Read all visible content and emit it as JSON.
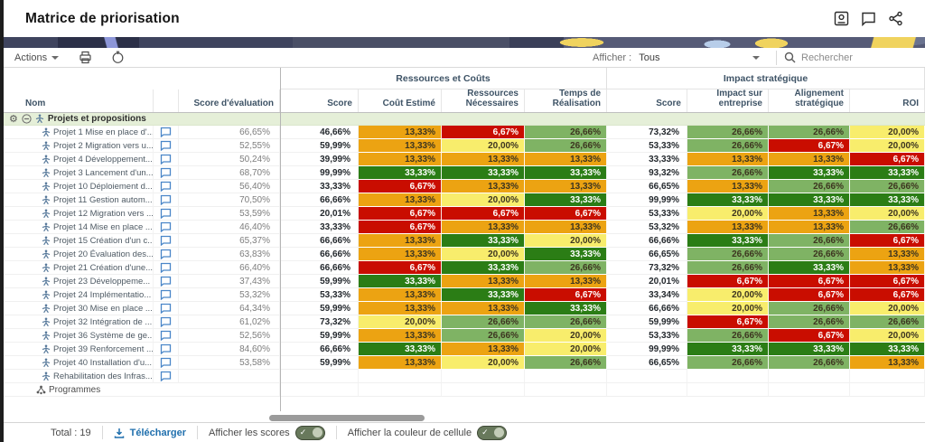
{
  "header": {
    "title": "Matrice de priorisation",
    "icons": [
      "user-card-icon",
      "comment-icon",
      "share-icon"
    ]
  },
  "toolbar": {
    "actions_label": "Actions",
    "print_icon": "printer-icon",
    "history_icon": "history-icon",
    "afficher_label": "Afficher :",
    "afficher_value": "Tous",
    "search_placeholder": "Rechercher"
  },
  "palette": {
    "green": "#2b7d15",
    "lgreen": "#7fb364",
    "yellow": "#f8ed6c",
    "orange": "#eca312",
    "red": "#c90d00",
    "dark_text": "#3d3520",
    "light_text": "#ffffff",
    "group_row_bg": "#e5efd8"
  },
  "table": {
    "group_headers": [
      {
        "label": "Ressources et Coûts"
      },
      {
        "label": "Impact stratégique"
      }
    ],
    "columns": [
      "Nom",
      "",
      "Score d'évaluation",
      "Score",
      "Coût Estimé",
      "Ressources Nécessaires",
      "Temps de Réalisation",
      "Score",
      "Impact sur entreprise",
      "Alignement stratégique",
      "ROI"
    ],
    "group_row_label": "Projets et propositions",
    "programmes_label": "Programmes",
    "rows": [
      {
        "name": "Projet 1 Mise en place d'...",
        "score_eval": "66,65%",
        "rc_score": "46,66%",
        "cout": {
          "v": "13,33%",
          "c": "orange"
        },
        "ress": {
          "v": "6,67%",
          "c": "red"
        },
        "temps": {
          "v": "26,66%",
          "c": "lgreen"
        },
        "is_score": "73,32%",
        "impact": {
          "v": "26,66%",
          "c": "lgreen"
        },
        "align": {
          "v": "26,66%",
          "c": "lgreen"
        },
        "roi": {
          "v": "20,00%",
          "c": "yellow"
        }
      },
      {
        "name": "Projet 2 Migration vers u...",
        "score_eval": "52,55%",
        "rc_score": "59,99%",
        "cout": {
          "v": "13,33%",
          "c": "orange"
        },
        "ress": {
          "v": "20,00%",
          "c": "yellow"
        },
        "temps": {
          "v": "26,66%",
          "c": "lgreen"
        },
        "is_score": "53,33%",
        "impact": {
          "v": "26,66%",
          "c": "lgreen"
        },
        "align": {
          "v": "6,67%",
          "c": "red"
        },
        "roi": {
          "v": "20,00%",
          "c": "yellow"
        }
      },
      {
        "name": "Projet 4 Développement...",
        "score_eval": "50,24%",
        "rc_score": "39,99%",
        "cout": {
          "v": "13,33%",
          "c": "orange"
        },
        "ress": {
          "v": "13,33%",
          "c": "orange"
        },
        "temps": {
          "v": "13,33%",
          "c": "orange"
        },
        "is_score": "33,33%",
        "impact": {
          "v": "13,33%",
          "c": "orange"
        },
        "align": {
          "v": "13,33%",
          "c": "orange"
        },
        "roi": {
          "v": "6,67%",
          "c": "red"
        }
      },
      {
        "name": "Projet 3 Lancement d'un...",
        "score_eval": "68,70%",
        "rc_score": "99,99%",
        "cout": {
          "v": "33,33%",
          "c": "green"
        },
        "ress": {
          "v": "33,33%",
          "c": "green"
        },
        "temps": {
          "v": "33,33%",
          "c": "green"
        },
        "is_score": "93,32%",
        "impact": {
          "v": "26,66%",
          "c": "lgreen"
        },
        "align": {
          "v": "33,33%",
          "c": "green"
        },
        "roi": {
          "v": "33,33%",
          "c": "green"
        }
      },
      {
        "name": "Projet 10 Déploiement d...",
        "score_eval": "56,40%",
        "rc_score": "33,33%",
        "cout": {
          "v": "6,67%",
          "c": "red"
        },
        "ress": {
          "v": "13,33%",
          "c": "orange"
        },
        "temps": {
          "v": "13,33%",
          "c": "orange"
        },
        "is_score": "66,65%",
        "impact": {
          "v": "13,33%",
          "c": "orange"
        },
        "align": {
          "v": "26,66%",
          "c": "lgreen"
        },
        "roi": {
          "v": "26,66%",
          "c": "lgreen"
        }
      },
      {
        "name": "Projet 11 Gestion autom...",
        "score_eval": "70,50%",
        "rc_score": "66,66%",
        "cout": {
          "v": "13,33%",
          "c": "orange"
        },
        "ress": {
          "v": "20,00%",
          "c": "yellow"
        },
        "temps": {
          "v": "33,33%",
          "c": "green"
        },
        "is_score": "99,99%",
        "impact": {
          "v": "33,33%",
          "c": "green"
        },
        "align": {
          "v": "33,33%",
          "c": "green"
        },
        "roi": {
          "v": "33,33%",
          "c": "green"
        }
      },
      {
        "name": "Projet 12 Migration vers ...",
        "score_eval": "53,59%",
        "rc_score": "20,01%",
        "cout": {
          "v": "6,67%",
          "c": "red"
        },
        "ress": {
          "v": "6,67%",
          "c": "red"
        },
        "temps": {
          "v": "6,67%",
          "c": "red"
        },
        "is_score": "53,33%",
        "impact": {
          "v": "20,00%",
          "c": "yellow"
        },
        "align": {
          "v": "13,33%",
          "c": "orange"
        },
        "roi": {
          "v": "20,00%",
          "c": "yellow"
        }
      },
      {
        "name": "Projet 14 Mise en place ...",
        "score_eval": "46,40%",
        "rc_score": "33,33%",
        "cout": {
          "v": "6,67%",
          "c": "red"
        },
        "ress": {
          "v": "13,33%",
          "c": "orange"
        },
        "temps": {
          "v": "13,33%",
          "c": "orange"
        },
        "is_score": "53,32%",
        "impact": {
          "v": "13,33%",
          "c": "orange"
        },
        "align": {
          "v": "13,33%",
          "c": "orange"
        },
        "roi": {
          "v": "26,66%",
          "c": "lgreen"
        }
      },
      {
        "name": "Projet 15 Création d'un c...",
        "score_eval": "65,37%",
        "rc_score": "66,66%",
        "cout": {
          "v": "13,33%",
          "c": "orange"
        },
        "ress": {
          "v": "33,33%",
          "c": "green"
        },
        "temps": {
          "v": "20,00%",
          "c": "yellow"
        },
        "is_score": "66,66%",
        "impact": {
          "v": "33,33%",
          "c": "green"
        },
        "align": {
          "v": "26,66%",
          "c": "lgreen"
        },
        "roi": {
          "v": "6,67%",
          "c": "red"
        }
      },
      {
        "name": "Projet 20 Évaluation des...",
        "score_eval": "63,83%",
        "rc_score": "66,66%",
        "cout": {
          "v": "13,33%",
          "c": "orange"
        },
        "ress": {
          "v": "20,00%",
          "c": "yellow"
        },
        "temps": {
          "v": "33,33%",
          "c": "green"
        },
        "is_score": "66,65%",
        "impact": {
          "v": "26,66%",
          "c": "lgreen"
        },
        "align": {
          "v": "26,66%",
          "c": "lgreen"
        },
        "roi": {
          "v": "13,33%",
          "c": "orange"
        }
      },
      {
        "name": "Projet 21 Création d'une...",
        "score_eval": "66,40%",
        "rc_score": "66,66%",
        "cout": {
          "v": "6,67%",
          "c": "red"
        },
        "ress": {
          "v": "33,33%",
          "c": "green"
        },
        "temps": {
          "v": "26,66%",
          "c": "lgreen"
        },
        "is_score": "73,32%",
        "impact": {
          "v": "26,66%",
          "c": "lgreen"
        },
        "align": {
          "v": "33,33%",
          "c": "green"
        },
        "roi": {
          "v": "13,33%",
          "c": "orange"
        }
      },
      {
        "name": "Projet 23 Développeme...",
        "score_eval": "37,43%",
        "rc_score": "59,99%",
        "cout": {
          "v": "33,33%",
          "c": "green"
        },
        "ress": {
          "v": "13,33%",
          "c": "orange"
        },
        "temps": {
          "v": "13,33%",
          "c": "orange"
        },
        "is_score": "20,01%",
        "impact": {
          "v": "6,67%",
          "c": "red"
        },
        "align": {
          "v": "6,67%",
          "c": "red"
        },
        "roi": {
          "v": "6,67%",
          "c": "red"
        }
      },
      {
        "name": "Projet 24 Implémentatio...",
        "score_eval": "53,32%",
        "rc_score": "53,33%",
        "cout": {
          "v": "13,33%",
          "c": "orange"
        },
        "ress": {
          "v": "33,33%",
          "c": "green"
        },
        "temps": {
          "v": "6,67%",
          "c": "red"
        },
        "is_score": "33,34%",
        "impact": {
          "v": "20,00%",
          "c": "yellow"
        },
        "align": {
          "v": "6,67%",
          "c": "red"
        },
        "roi": {
          "v": "6,67%",
          "c": "red"
        }
      },
      {
        "name": "Projet 30 Mise en place ...",
        "score_eval": "64,34%",
        "rc_score": "59,99%",
        "cout": {
          "v": "13,33%",
          "c": "orange"
        },
        "ress": {
          "v": "13,33%",
          "c": "orange"
        },
        "temps": {
          "v": "33,33%",
          "c": "green"
        },
        "is_score": "66,66%",
        "impact": {
          "v": "20,00%",
          "c": "yellow"
        },
        "align": {
          "v": "26,66%",
          "c": "lgreen"
        },
        "roi": {
          "v": "20,00%",
          "c": "yellow"
        }
      },
      {
        "name": "Projet 32 Intégration de ...",
        "score_eval": "61,02%",
        "rc_score": "73,32%",
        "cout": {
          "v": "20,00%",
          "c": "yellow"
        },
        "ress": {
          "v": "26,66%",
          "c": "lgreen"
        },
        "temps": {
          "v": "26,66%",
          "c": "lgreen"
        },
        "is_score": "59,99%",
        "impact": {
          "v": "6,67%",
          "c": "red"
        },
        "align": {
          "v": "26,66%",
          "c": "lgreen"
        },
        "roi": {
          "v": "26,66%",
          "c": "lgreen"
        }
      },
      {
        "name": "Projet 36 Système de ge...",
        "score_eval": "52,56%",
        "rc_score": "59,99%",
        "cout": {
          "v": "13,33%",
          "c": "orange"
        },
        "ress": {
          "v": "26,66%",
          "c": "lgreen"
        },
        "temps": {
          "v": "20,00%",
          "c": "yellow"
        },
        "is_score": "53,33%",
        "impact": {
          "v": "26,66%",
          "c": "lgreen"
        },
        "align": {
          "v": "6,67%",
          "c": "red"
        },
        "roi": {
          "v": "20,00%",
          "c": "yellow"
        }
      },
      {
        "name": "Projet 39 Renforcement ...",
        "score_eval": "84,60%",
        "rc_score": "66,66%",
        "cout": {
          "v": "33,33%",
          "c": "green"
        },
        "ress": {
          "v": "13,33%",
          "c": "orange"
        },
        "temps": {
          "v": "20,00%",
          "c": "yellow"
        },
        "is_score": "99,99%",
        "impact": {
          "v": "33,33%",
          "c": "green"
        },
        "align": {
          "v": "33,33%",
          "c": "green"
        },
        "roi": {
          "v": "33,33%",
          "c": "green"
        }
      },
      {
        "name": "Projet 40 Installation d'u...",
        "score_eval": "53,58%",
        "rc_score": "59,99%",
        "cout": {
          "v": "13,33%",
          "c": "orange"
        },
        "ress": {
          "v": "20,00%",
          "c": "yellow"
        },
        "temps": {
          "v": "26,66%",
          "c": "lgreen"
        },
        "is_score": "66,65%",
        "impact": {
          "v": "26,66%",
          "c": "lgreen"
        },
        "align": {
          "v": "26,66%",
          "c": "lgreen"
        },
        "roi": {
          "v": "13,33%",
          "c": "orange"
        }
      },
      {
        "name": "Rehabilitation des Infras...",
        "score_eval": "",
        "rc_score": "",
        "cout": null,
        "ress": null,
        "temps": null,
        "is_score": "",
        "impact": null,
        "align": null,
        "roi": null
      }
    ]
  },
  "footer": {
    "total": "Total : 19",
    "download_label": "Télécharger",
    "toggle_scores_label": "Afficher les scores",
    "toggle_scores_on": true,
    "toggle_colors_label": "Afficher la couleur de cellule",
    "toggle_colors_on": true
  }
}
